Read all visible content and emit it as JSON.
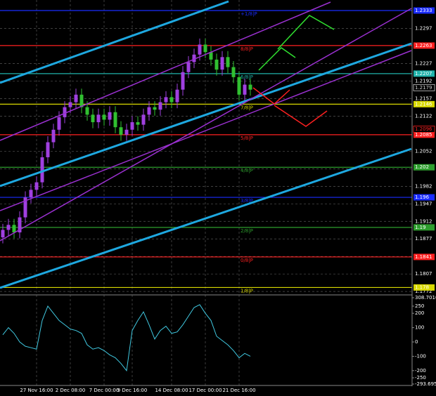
{
  "chart_data": [
    {
      "type": "candlestick",
      "bull_color": "#a040e0",
      "bear_color": "#30c030",
      "xlim": [
        0,
        72
      ],
      "xticks": [
        {
          "value": 6,
          "label": "27 Nov 16:00"
        },
        {
          "value": 12,
          "label": "2 Dec 08:00"
        },
        {
          "value": 18,
          "label": "7 Dec 00:00"
        },
        {
          "value": 23,
          "label": "9 Dec 16:00"
        },
        {
          "value": 30,
          "label": "14 Dec 08:00"
        },
        {
          "value": 36,
          "label": "17 Dec 00:00"
        },
        {
          "value": 42,
          "label": "21 Dec 16:00"
        }
      ],
      "ylim": [
        1.1768,
        1.2354
      ],
      "yticks": [
        1.2297,
        1.2227,
        1.2192,
        1.2157,
        1.2122,
        1.2052,
        1.2017,
        1.1982,
        1.1947,
        1.1912,
        1.1877,
        1.1842,
        1.1807,
        1.1772
      ],
      "grid": true,
      "open": [
        1.188,
        1.1895,
        1.1905,
        1.189,
        1.192,
        1.196,
        1.1975,
        1.199,
        1.204,
        1.207,
        1.2095,
        1.212,
        1.214,
        1.215,
        1.2165,
        1.214,
        1.2125,
        1.211,
        1.2125,
        1.2115,
        1.213,
        1.21,
        1.2085,
        1.2095,
        1.211,
        1.2105,
        1.2125,
        1.214,
        1.2135,
        1.215,
        1.216,
        1.215,
        1.2175,
        1.221,
        1.223,
        1.2245,
        1.2265,
        1.225,
        1.2235,
        1.2215,
        1.224,
        1.222,
        1.22,
        1.2165,
        1.2185
      ],
      "high": [
        1.1907,
        1.1917,
        1.1917,
        1.1932,
        1.1972,
        1.1987,
        1.2002,
        1.2052,
        1.2082,
        1.2107,
        1.2132,
        1.2152,
        1.2162,
        1.2177,
        1.2177,
        1.2152,
        1.2137,
        1.2137,
        1.2137,
        1.2142,
        1.2142,
        1.2112,
        1.2107,
        1.2122,
        1.2122,
        1.2137,
        1.2152,
        1.2152,
        1.2162,
        1.2172,
        1.2172,
        1.2187,
        1.2222,
        1.2242,
        1.2257,
        1.2277,
        1.2277,
        1.2262,
        1.2247,
        1.2252,
        1.2252,
        1.2232,
        1.2212,
        1.2197,
        1.2197
      ],
      "low": [
        1.1868,
        1.1883,
        1.1878,
        1.1878,
        1.1908,
        1.1948,
        1.1963,
        1.1978,
        1.2028,
        1.2058,
        1.2083,
        1.2108,
        1.2128,
        1.2138,
        1.2128,
        1.2113,
        1.2098,
        1.2098,
        1.2103,
        1.2103,
        1.2088,
        1.2073,
        1.2073,
        1.2083,
        1.2093,
        1.2093,
        1.2113,
        1.2123,
        1.2123,
        1.2138,
        1.2138,
        1.2138,
        1.2163,
        1.2198,
        1.2218,
        1.2233,
        1.2238,
        1.2223,
        1.2203,
        1.2203,
        1.2208,
        1.2188,
        1.2153,
        1.2153,
        1.2163
      ],
      "close": [
        1.1895,
        1.1905,
        1.189,
        1.192,
        1.196,
        1.1975,
        1.199,
        1.204,
        1.207,
        1.2095,
        1.212,
        1.214,
        1.215,
        1.2165,
        1.214,
        1.2125,
        1.211,
        1.2125,
        1.2115,
        1.213,
        1.21,
        1.2085,
        1.2095,
        1.211,
        1.2105,
        1.2125,
        1.214,
        1.2135,
        1.215,
        1.216,
        1.215,
        1.2175,
        1.221,
        1.223,
        1.2245,
        1.2265,
        1.225,
        1.2235,
        1.2215,
        1.224,
        1.222,
        1.22,
        1.2165,
        1.2185,
        1.2175
      ],
      "levels": [
        {
          "label": "+1/8|P",
          "value": 1.2333,
          "color": "#1a2cff"
        },
        {
          "label": "8/8|P",
          "value": 1.2263,
          "color": "#ff2020"
        },
        {
          "label": "6/8|P",
          "value": 1.2207,
          "color": "#20b2aa"
        },
        {
          "label": "7/8|P",
          "value": 1.2146,
          "color": "#d8d800"
        },
        {
          "label": "5/8|P",
          "value": 1.2085,
          "color": "#ff2020"
        },
        {
          "label": "4/8|P",
          "value": 1.202,
          "color": "#2e9e2e"
        },
        {
          "label": "3/8|P",
          "value": 1.196,
          "color": "#1a2cff"
        },
        {
          "label": "2/8|P",
          "value": 1.19,
          "color": "#2e9e2e"
        },
        {
          "label": "0/8|P",
          "value": 1.1841,
          "color": "#ff2020"
        },
        {
          "label": "1/8|P",
          "value": 1.178,
          "color": "#d8d800"
        }
      ],
      "price_markers": [
        {
          "value": 1.2179,
          "color": "#cccccc"
        },
        {
          "value": 1.2096,
          "color": "#ff2020"
        }
      ]
    },
    {
      "type": "line",
      "color": "#40c8e0",
      "ylim": [
        -293.695,
        308.7016
      ],
      "yticks": [
        308.7016,
        250,
        200,
        100,
        0,
        -100,
        -200,
        -250,
        -293.695
      ],
      "values": [
        50,
        100,
        60,
        0,
        -30,
        -40,
        -50,
        150,
        250,
        200,
        150,
        120,
        90,
        80,
        60,
        -20,
        -50,
        -40,
        -60,
        -90,
        -110,
        -150,
        -200,
        80,
        150,
        210,
        120,
        20,
        80,
        110,
        60,
        70,
        120,
        180,
        240,
        260,
        200,
        150,
        40,
        10,
        -20,
        -60,
        -110,
        -80,
        -100
      ]
    }
  ]
}
